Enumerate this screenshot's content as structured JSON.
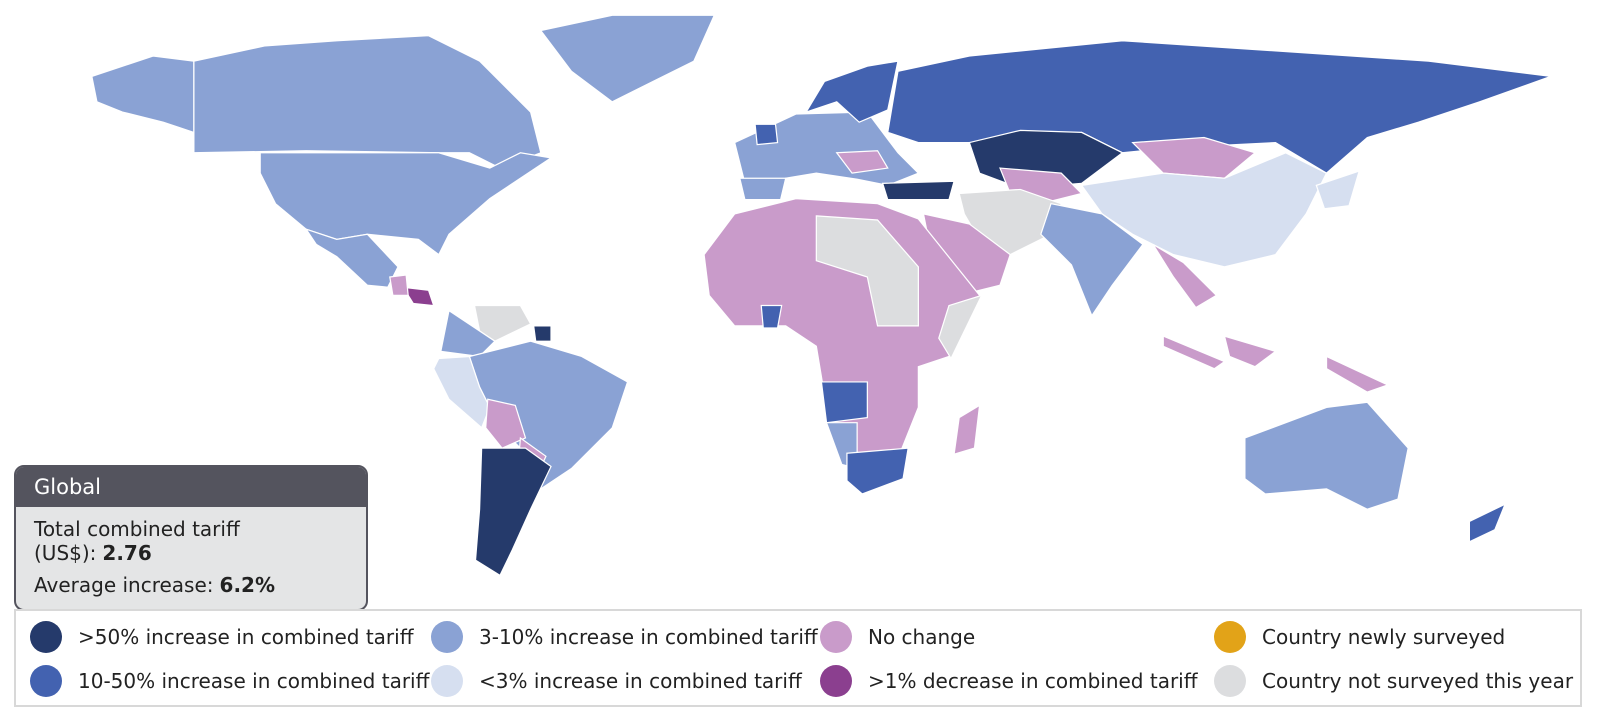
{
  "info_box": {
    "title": "Global",
    "rows": [
      {
        "label": "Total combined tariff (US$):",
        "value": "2.76"
      },
      {
        "label": "Average increase:",
        "value": "6.2%"
      }
    ]
  },
  "legend": {
    "items": [
      {
        "label": ">50% increase in combined tariff",
        "color": "#253a6b"
      },
      {
        "label": "10-50% increase in combined tariff",
        "color": "#4362b0"
      },
      {
        "label": "3-10% increase in combined tariff",
        "color": "#8aa2d4"
      },
      {
        "label": "<3% increase in combined tariff",
        "color": "#d6dff0"
      },
      {
        "label": "No change",
        "color": "#c99bca"
      },
      {
        "label": ">1% decrease in combined tariff",
        "color": "#8b3f8f"
      },
      {
        "label": "Country newly surveyed",
        "color": "#e2a318"
      },
      {
        "label": "Country not surveyed this year",
        "color": "#dcdddf"
      }
    ]
  }
}
